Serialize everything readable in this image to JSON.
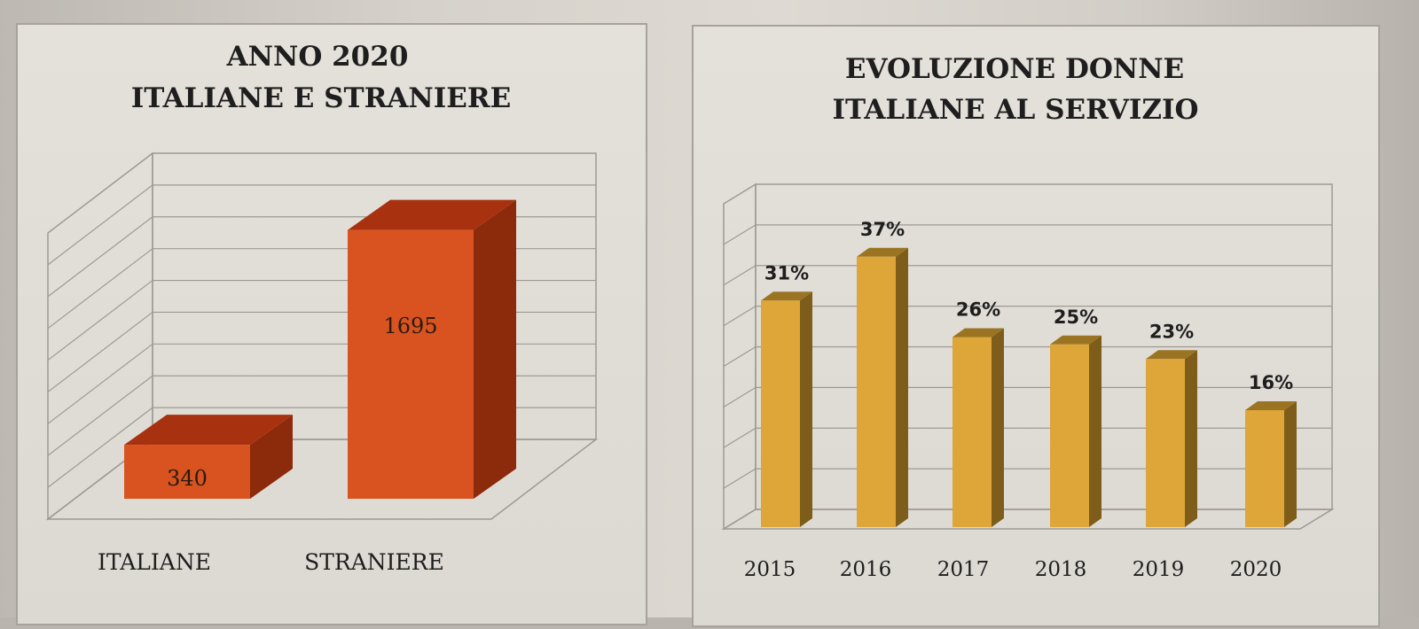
{
  "colors": {
    "left_front": "#d8531f",
    "left_top": "#a8320f",
    "left_side": "#8c2a0c",
    "right_front": "#dea538",
    "right_top": "#9a7422",
    "right_side": "#7d5d19",
    "grid": "#9e9a93"
  },
  "chart_data": [
    {
      "type": "bar",
      "title": "ANNO 2020",
      "subtitle": "ITALIANE E STRANIERE",
      "categories": [
        "ITALIANE",
        "STRANIERE"
      ],
      "values": [
        340,
        1695
      ],
      "value_labels": [
        "340",
        "1695"
      ],
      "ylim": [
        0,
        2000
      ],
      "grid": true,
      "three_d": true
    },
    {
      "type": "bar",
      "title": "EVOLUZIONE DONNE",
      "subtitle": "ITALIANE AL SERVIZIO",
      "categories": [
        "2015",
        "2016",
        "2017",
        "2018",
        "2019",
        "2020"
      ],
      "values": [
        31,
        37,
        26,
        25,
        23,
        16
      ],
      "value_labels": [
        "31%",
        "37%",
        "26%",
        "25%",
        "23%",
        "16%"
      ],
      "ylim": [
        0,
        40
      ],
      "grid": true,
      "three_d": true
    }
  ]
}
